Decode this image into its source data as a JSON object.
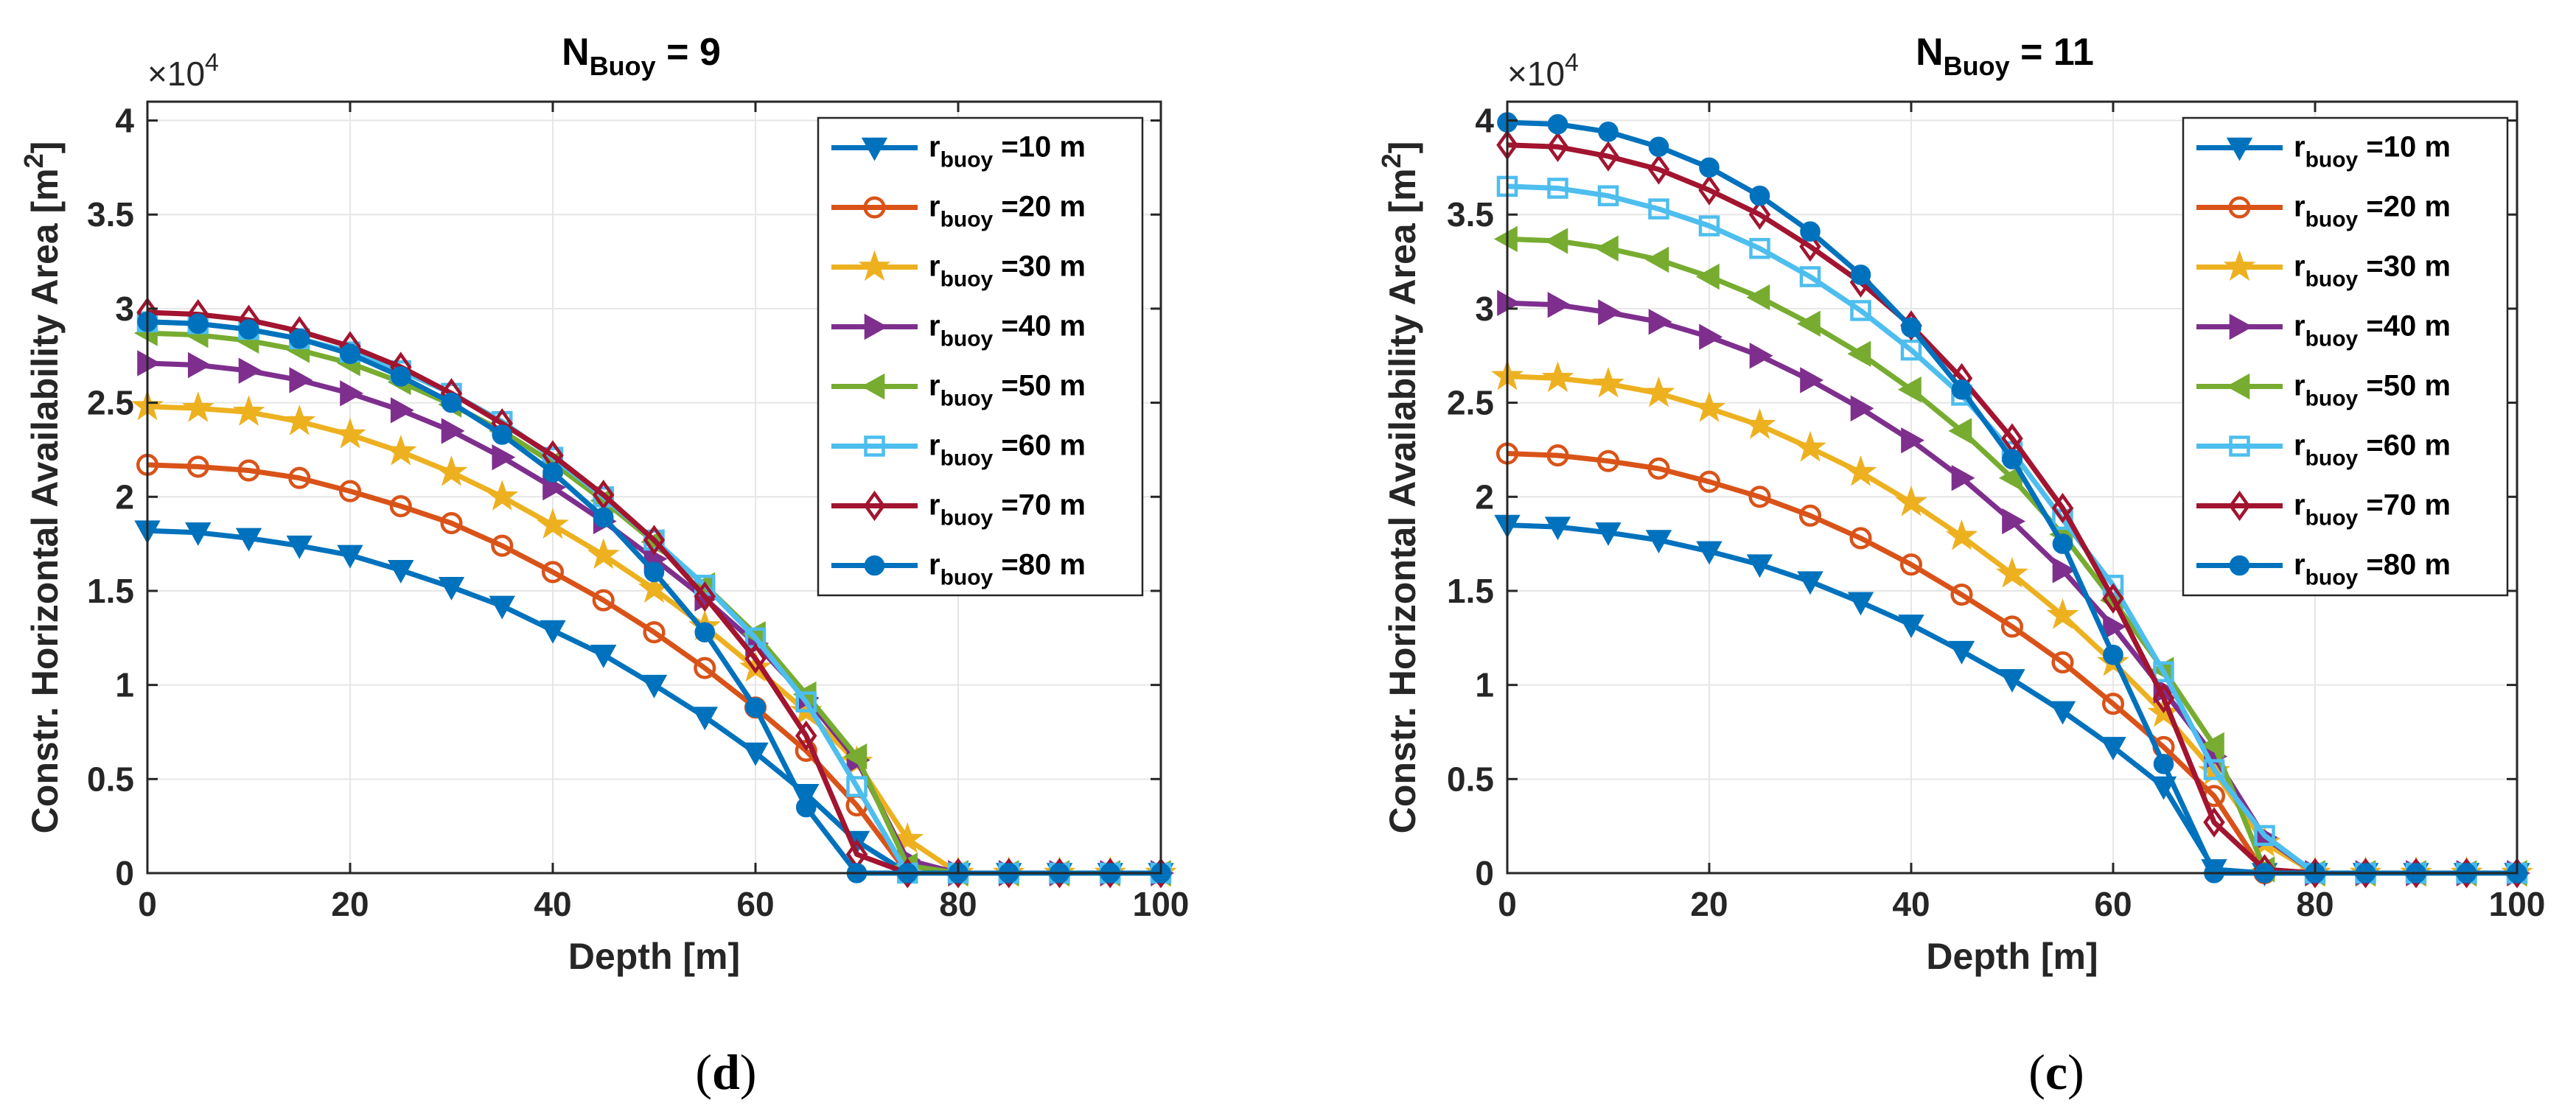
{
  "chart_data": [
    {
      "type": "line",
      "panel_label": "d",
      "title": "N",
      "title_sub": "Buoy",
      "title_value": " = 9",
      "xlabel": "Depth [m]",
      "ylabel": "Constr. Horizontal Availability Area [m",
      "ylabel_sup": "2",
      "ylabel_close": "]",
      "exponent_base": "×10",
      "exponent_power": "4",
      "xlim": [
        0,
        100
      ],
      "ylim": [
        0,
        4.1
      ],
      "xticks": [
        "0",
        "20",
        "40",
        "60",
        "80",
        "100"
      ],
      "yticks": [
        "0",
        "0.5",
        "1",
        "1.5",
        "2",
        "2.5",
        "3",
        "3.5",
        "4"
      ],
      "grid": true,
      "legend_position": "top-right",
      "x": [
        0,
        5,
        10,
        15,
        20,
        25,
        30,
        35,
        40,
        45,
        50,
        55,
        60,
        65,
        70,
        75,
        80,
        85,
        90,
        95,
        100
      ],
      "series": [
        {
          "name_main": "r",
          "name_sub": "buoy",
          "name_rest": " =10 m",
          "color": "#0072BD",
          "marker": "triangle-down",
          "values": [
            1.82,
            1.81,
            1.78,
            1.74,
            1.69,
            1.61,
            1.52,
            1.42,
            1.29,
            1.16,
            1.0,
            0.83,
            0.64,
            0.42,
            0.17,
            0,
            0,
            0,
            0,
            0,
            0
          ]
        },
        {
          "name_main": "r",
          "name_sub": "buoy",
          "name_rest": " =20 m",
          "color": "#D95319",
          "marker": "circle",
          "values": [
            2.17,
            2.16,
            2.14,
            2.1,
            2.03,
            1.95,
            1.86,
            1.74,
            1.6,
            1.45,
            1.28,
            1.09,
            0.88,
            0.65,
            0.36,
            0,
            0,
            0,
            0,
            0,
            0
          ]
        },
        {
          "name_main": "r",
          "name_sub": "buoy",
          "name_rest": " =30 m",
          "color": "#EDB120",
          "marker": "star",
          "values": [
            2.48,
            2.47,
            2.45,
            2.4,
            2.33,
            2.24,
            2.13,
            2.0,
            1.85,
            1.69,
            1.51,
            1.31,
            1.09,
            0.86,
            0.59,
            0.18,
            0,
            0,
            0,
            0,
            0
          ]
        },
        {
          "name_main": "r",
          "name_sub": "buoy",
          "name_rest": " =40 m",
          "color": "#7E2F8E",
          "marker": "triangle-right",
          "values": [
            2.71,
            2.7,
            2.67,
            2.62,
            2.55,
            2.46,
            2.35,
            2.21,
            2.05,
            1.87,
            1.67,
            1.46,
            1.22,
            0.93,
            0.6,
            0.07,
            0,
            0,
            0,
            0,
            0
          ]
        },
        {
          "name_main": "r",
          "name_sub": "buoy",
          "name_rest": " =50 m",
          "color": "#77AC30",
          "marker": "triangle-left",
          "values": [
            2.87,
            2.86,
            2.83,
            2.78,
            2.71,
            2.61,
            2.49,
            2.35,
            2.18,
            1.98,
            1.76,
            1.53,
            1.27,
            0.95,
            0.62,
            0.04,
            0,
            0,
            0,
            0,
            0
          ]
        },
        {
          "name_main": "r",
          "name_sub": "buoy",
          "name_rest": " =60 m",
          "color": "#4DBEEE",
          "marker": "square",
          "values": [
            2.93,
            2.92,
            2.89,
            2.84,
            2.77,
            2.67,
            2.55,
            2.4,
            2.21,
            2.0,
            1.77,
            1.53,
            1.25,
            0.91,
            0.46,
            0,
            0,
            0,
            0,
            0,
            0
          ]
        },
        {
          "name_main": "r",
          "name_sub": "buoy",
          "name_rest": " =70 m",
          "color": "#A2142F",
          "marker": "diamond",
          "values": [
            2.98,
            2.97,
            2.94,
            2.88,
            2.8,
            2.69,
            2.55,
            2.39,
            2.22,
            2.01,
            1.77,
            1.47,
            1.14,
            0.73,
            0.1,
            0,
            0,
            0,
            0,
            0,
            0
          ]
        },
        {
          "name_main": "r",
          "name_sub": "buoy",
          "name_rest": " =80 m",
          "color": "#0072BD",
          "marker": "filled-circle",
          "values": [
            2.93,
            2.92,
            2.89,
            2.84,
            2.76,
            2.64,
            2.5,
            2.33,
            2.13,
            1.89,
            1.6,
            1.28,
            0.88,
            0.35,
            0,
            0,
            0,
            0,
            0,
            0,
            0
          ]
        }
      ]
    },
    {
      "type": "line",
      "panel_label": "c",
      "title": "N",
      "title_sub": "Buoy",
      "title_value": " = 11",
      "xlabel": "Depth [m]",
      "ylabel": "Constr. Horizontal Availability Area [m",
      "ylabel_sup": "2",
      "ylabel_close": "]",
      "exponent_base": "×10",
      "exponent_power": "4",
      "xlim": [
        0,
        100
      ],
      "ylim": [
        0,
        4.1
      ],
      "xticks": [
        "0",
        "20",
        "40",
        "60",
        "80",
        "100"
      ],
      "yticks": [
        "0",
        "0.5",
        "1",
        "1.5",
        "2",
        "2.5",
        "3",
        "3.5",
        "4"
      ],
      "grid": true,
      "legend_position": "top-right",
      "x": [
        0,
        5,
        10,
        15,
        20,
        25,
        30,
        35,
        40,
        45,
        50,
        55,
        60,
        65,
        70,
        75,
        80,
        85,
        90,
        95,
        100
      ],
      "series": [
        {
          "name_main": "r",
          "name_sub": "buoy",
          "name_rest": " =10 m",
          "color": "#0072BD",
          "marker": "triangle-down",
          "values": [
            1.85,
            1.84,
            1.81,
            1.77,
            1.71,
            1.64,
            1.55,
            1.44,
            1.32,
            1.18,
            1.03,
            0.86,
            0.67,
            0.46,
            0.02,
            0,
            0,
            0,
            0,
            0,
            0
          ]
        },
        {
          "name_main": "r",
          "name_sub": "buoy",
          "name_rest": " =20 m",
          "color": "#D95319",
          "marker": "circle",
          "values": [
            2.23,
            2.22,
            2.19,
            2.15,
            2.08,
            2.0,
            1.9,
            1.78,
            1.64,
            1.48,
            1.31,
            1.12,
            0.9,
            0.67,
            0.41,
            0,
            0,
            0,
            0,
            0,
            0
          ]
        },
        {
          "name_main": "r",
          "name_sub": "buoy",
          "name_rest": " =30 m",
          "color": "#EDB120",
          "marker": "star",
          "values": [
            2.64,
            2.63,
            2.6,
            2.55,
            2.47,
            2.38,
            2.26,
            2.13,
            1.97,
            1.79,
            1.59,
            1.37,
            1.12,
            0.85,
            0.54,
            0.16,
            0,
            0,
            0,
            0,
            0
          ]
        },
        {
          "name_main": "r",
          "name_sub": "buoy",
          "name_rest": " =40 m",
          "color": "#7E2F8E",
          "marker": "triangle-right",
          "values": [
            3.03,
            3.02,
            2.98,
            2.93,
            2.85,
            2.75,
            2.62,
            2.47,
            2.3,
            2.1,
            1.87,
            1.61,
            1.31,
            0.97,
            0.62,
            0.19,
            0,
            0,
            0,
            0,
            0
          ]
        },
        {
          "name_main": "r",
          "name_sub": "buoy",
          "name_rest": " =50 m",
          "color": "#77AC30",
          "marker": "triangle-left",
          "values": [
            3.37,
            3.36,
            3.32,
            3.26,
            3.17,
            3.06,
            2.92,
            2.76,
            2.57,
            2.35,
            2.1,
            1.8,
            1.45,
            1.08,
            0.68,
            0.02,
            0,
            0,
            0,
            0,
            0
          ]
        },
        {
          "name_main": "r",
          "name_sub": "buoy",
          "name_rest": " =60 m",
          "color": "#4DBEEE",
          "marker": "square",
          "values": [
            3.65,
            3.64,
            3.6,
            3.53,
            3.44,
            3.32,
            3.17,
            2.99,
            2.78,
            2.54,
            2.24,
            1.88,
            1.53,
            1.07,
            0.55,
            0.2,
            0,
            0,
            0,
            0,
            0
          ]
        },
        {
          "name_main": "r",
          "name_sub": "buoy",
          "name_rest": " =70 m",
          "color": "#A2142F",
          "marker": "diamond",
          "values": [
            3.87,
            3.86,
            3.81,
            3.74,
            3.63,
            3.5,
            3.33,
            3.14,
            2.91,
            2.63,
            2.31,
            1.94,
            1.46,
            0.93,
            0.27,
            0.02,
            0,
            0,
            0,
            0,
            0
          ]
        },
        {
          "name_main": "r",
          "name_sub": "buoy",
          "name_rest": " =80 m",
          "color": "#0072BD",
          "marker": "filled-circle",
          "values": [
            3.99,
            3.98,
            3.94,
            3.86,
            3.75,
            3.6,
            3.41,
            3.18,
            2.9,
            2.57,
            2.2,
            1.75,
            1.16,
            0.58,
            0,
            0,
            0,
            0,
            0,
            0,
            0
          ]
        }
      ]
    }
  ]
}
